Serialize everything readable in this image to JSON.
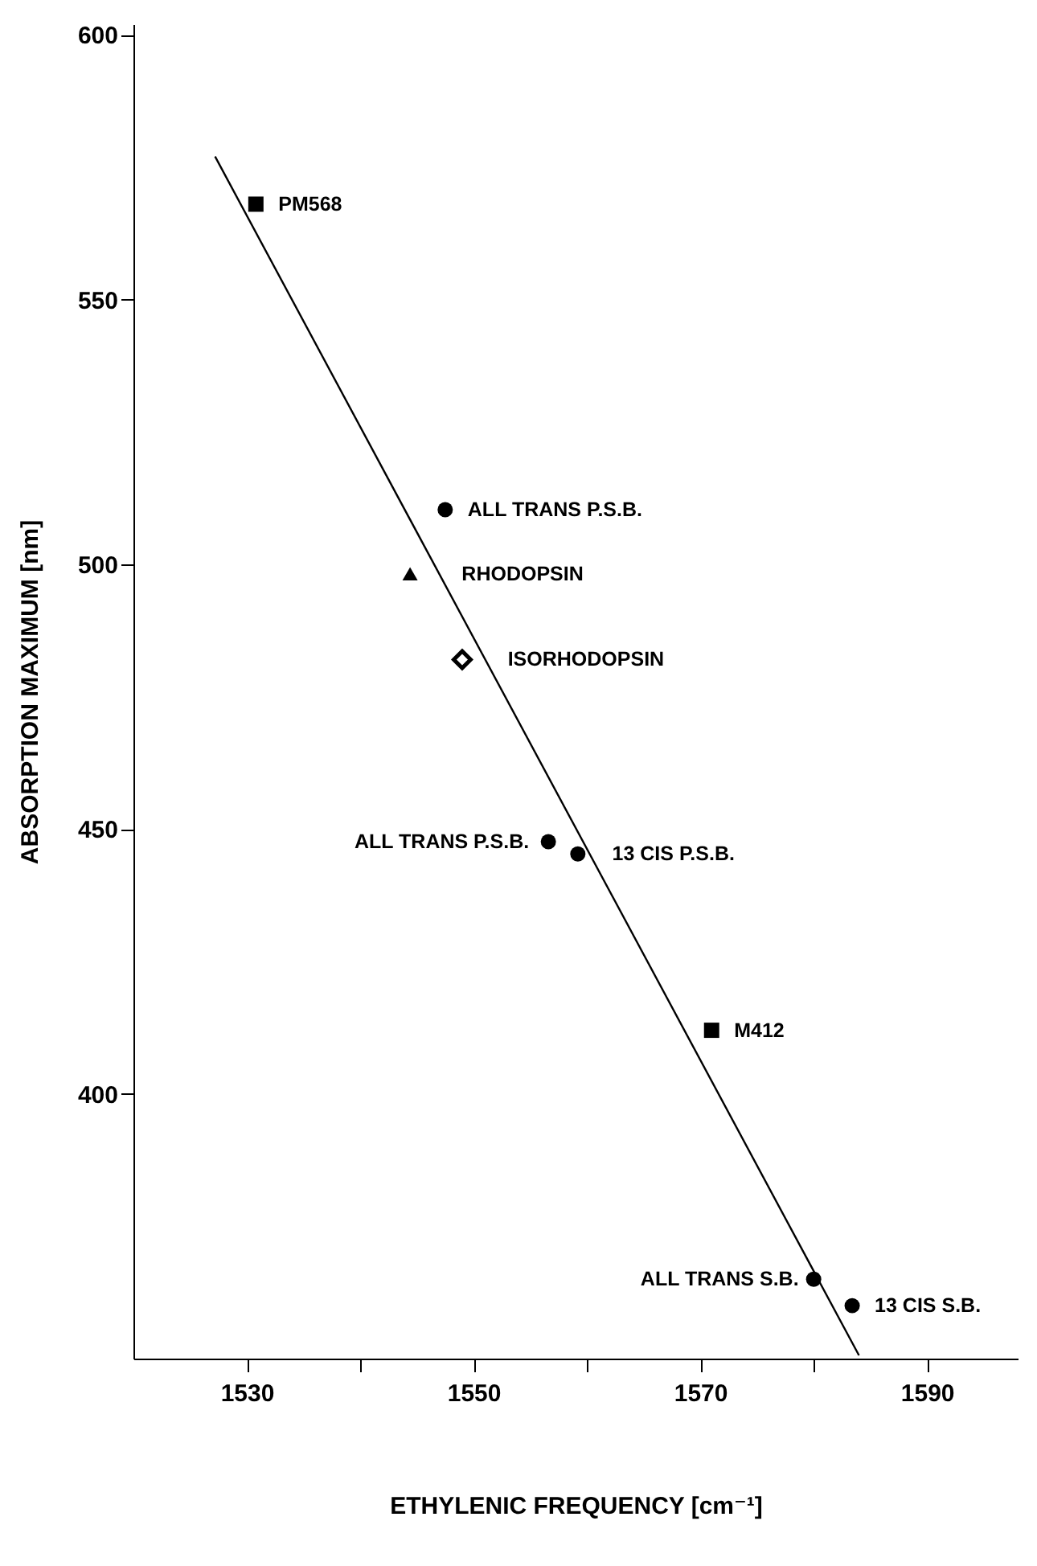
{
  "chart_data": {
    "type": "scatter",
    "xlabel": "ETHYLENIC FREQUENCY [cm⁻¹]",
    "ylabel": "ABSORPTION MAXIMUM [nm]",
    "xlim": [
      1520,
      1598
    ],
    "ylim": [
      350,
      602
    ],
    "xticks": [
      1530,
      {
        "value": 1540,
        "label": null
      },
      1550,
      {
        "value": 1560,
        "label": null
      },
      1570,
      {
        "value": 1580,
        "label": null
      },
      1590
    ],
    "yticks": [
      400,
      450,
      500,
      550,
      600
    ],
    "series": [
      {
        "marker": "square",
        "color": "#000000",
        "x": [
          1530.8,
          1571
        ],
        "values": [
          568,
          412
        ]
      },
      {
        "marker": "circle",
        "color": "#000000",
        "x": [
          1547.5,
          1556.6,
          1559.2,
          1580,
          1583.4
        ],
        "values": [
          510.3,
          447.6,
          445.3,
          365,
          360
        ]
      },
      {
        "marker": "triangle",
        "color": "#000000",
        "x": [
          1544.4
        ],
        "values": [
          498.2
        ]
      },
      {
        "marker": "diamond",
        "color": "#000000",
        "x": [
          1549
        ],
        "values": [
          482
        ]
      },
      {
        "type": "line",
        "marker": "none",
        "color": "#000000",
        "x": [
          1527.2,
          1584
        ],
        "values": [
          577,
          350.6
        ]
      }
    ],
    "annotations": [
      {
        "text": "PM568",
        "x": 1530.8,
        "y": 568
      },
      {
        "text": "M412",
        "x": 1571,
        "y": 412
      },
      {
        "text": "ALL TRANS P.S.B.",
        "x": 1547.5,
        "y": 510.3
      },
      {
        "text": "ALL TRANS P.S.B.",
        "x": 1556.6,
        "y": 447.6
      },
      {
        "text": "13 CIS P.S.B.",
        "x": 1559.2,
        "y": 445.3
      },
      {
        "text": "ALL TRANS S.B.",
        "x": 1580,
        "y": 365
      },
      {
        "text": "13 CIS S.B.",
        "x": 1583.4,
        "y": 360
      },
      {
        "text": "RHODOPSIN",
        "x": 1544.4,
        "y": 498.2
      },
      {
        "text": "ISORHODOPSIN",
        "x": 1549,
        "y": 482
      }
    ]
  }
}
